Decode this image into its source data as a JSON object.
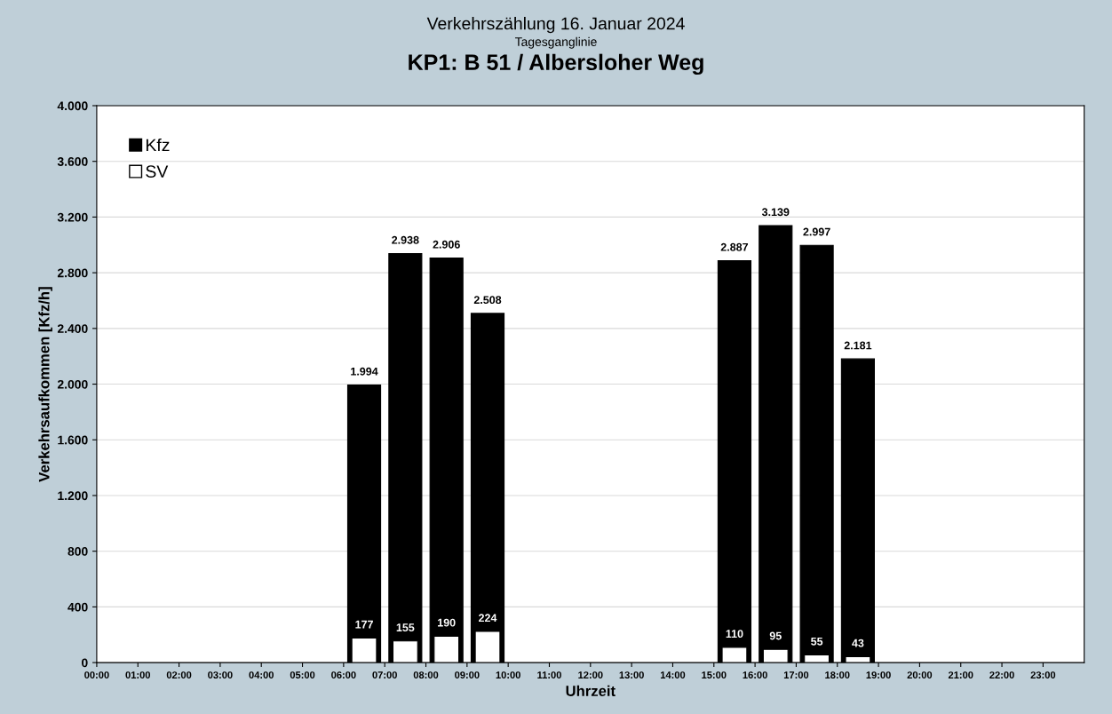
{
  "chart_data": {
    "type": "bar",
    "title": "KP1: B 51 / Albersloher Weg",
    "subtitle": "Verkehrszählung 16. Januar 2024\nTagesganglinie",
    "xlabel": "Uhrzeit",
    "ylabel": "Verkehrsaufkommen [Kfz/h]",
    "x": [
      6.5,
      7.5,
      8.5,
      9.5,
      15.5,
      16.5,
      17.5,
      18.5
    ],
    "series": [
      {
        "name": "Kfz",
        "color": "#000000",
        "values": [
          1994,
          2938,
          2906,
          2508,
          2887,
          3139,
          2997,
          2181
        ],
        "value_labels": [
          "1.994",
          "2.938",
          "2.906",
          "2.508",
          "2.887",
          "3.139",
          "2.997",
          "2.181"
        ]
      },
      {
        "name": "SV",
        "color": "#ffffff",
        "values": [
          177,
          155,
          190,
          224,
          110,
          95,
          55,
          43
        ],
        "value_labels": [
          "177",
          "155",
          "190",
          "224",
          "110",
          "95",
          "55",
          "43"
        ]
      }
    ],
    "xlim": [
      0,
      24
    ],
    "xticks": [
      {
        "value": 0,
        "label": "00:00"
      },
      {
        "value": 1,
        "label": "01:00"
      },
      {
        "value": 2,
        "label": "02:00"
      },
      {
        "value": 3,
        "label": "03:00"
      },
      {
        "value": 4,
        "label": "04:00"
      },
      {
        "value": 5,
        "label": "05:00"
      },
      {
        "value": 6,
        "label": "06:00"
      },
      {
        "value": 7,
        "label": "07:00"
      },
      {
        "value": 8,
        "label": "08:00"
      },
      {
        "value": 9,
        "label": "09:00"
      },
      {
        "value": 10,
        "label": "10:00"
      },
      {
        "value": 11,
        "label": "11:00"
      },
      {
        "value": 12,
        "label": "12:00"
      },
      {
        "value": 13,
        "label": "13:00"
      },
      {
        "value": 14,
        "label": "14:00"
      },
      {
        "value": 15,
        "label": "15:00"
      },
      {
        "value": 16,
        "label": "16:00"
      },
      {
        "value": 17,
        "label": "17:00"
      },
      {
        "value": 18,
        "label": "18:00"
      },
      {
        "value": 19,
        "label": "19:00"
      },
      {
        "value": 20,
        "label": "20:00"
      },
      {
        "value": 21,
        "label": "21:00"
      },
      {
        "value": 22,
        "label": "22:00"
      },
      {
        "value": 23,
        "label": "23:00"
      }
    ],
    "ylim": [
      0,
      4000
    ],
    "yticks": [
      0,
      400,
      800,
      {
        "value": 1200,
        "label": "1.200"
      },
      {
        "value": 1600,
        "label": "1.600"
      },
      {
        "value": 2000,
        "label": "2.000"
      },
      {
        "value": 2400,
        "label": "2.400"
      },
      {
        "value": 2800,
        "label": "2.800"
      },
      {
        "value": 3200,
        "label": "3.200"
      },
      {
        "value": 3600,
        "label": "3.600"
      },
      {
        "value": 4000,
        "label": "4.000"
      }
    ],
    "grid": "y",
    "legend": "top left"
  }
}
